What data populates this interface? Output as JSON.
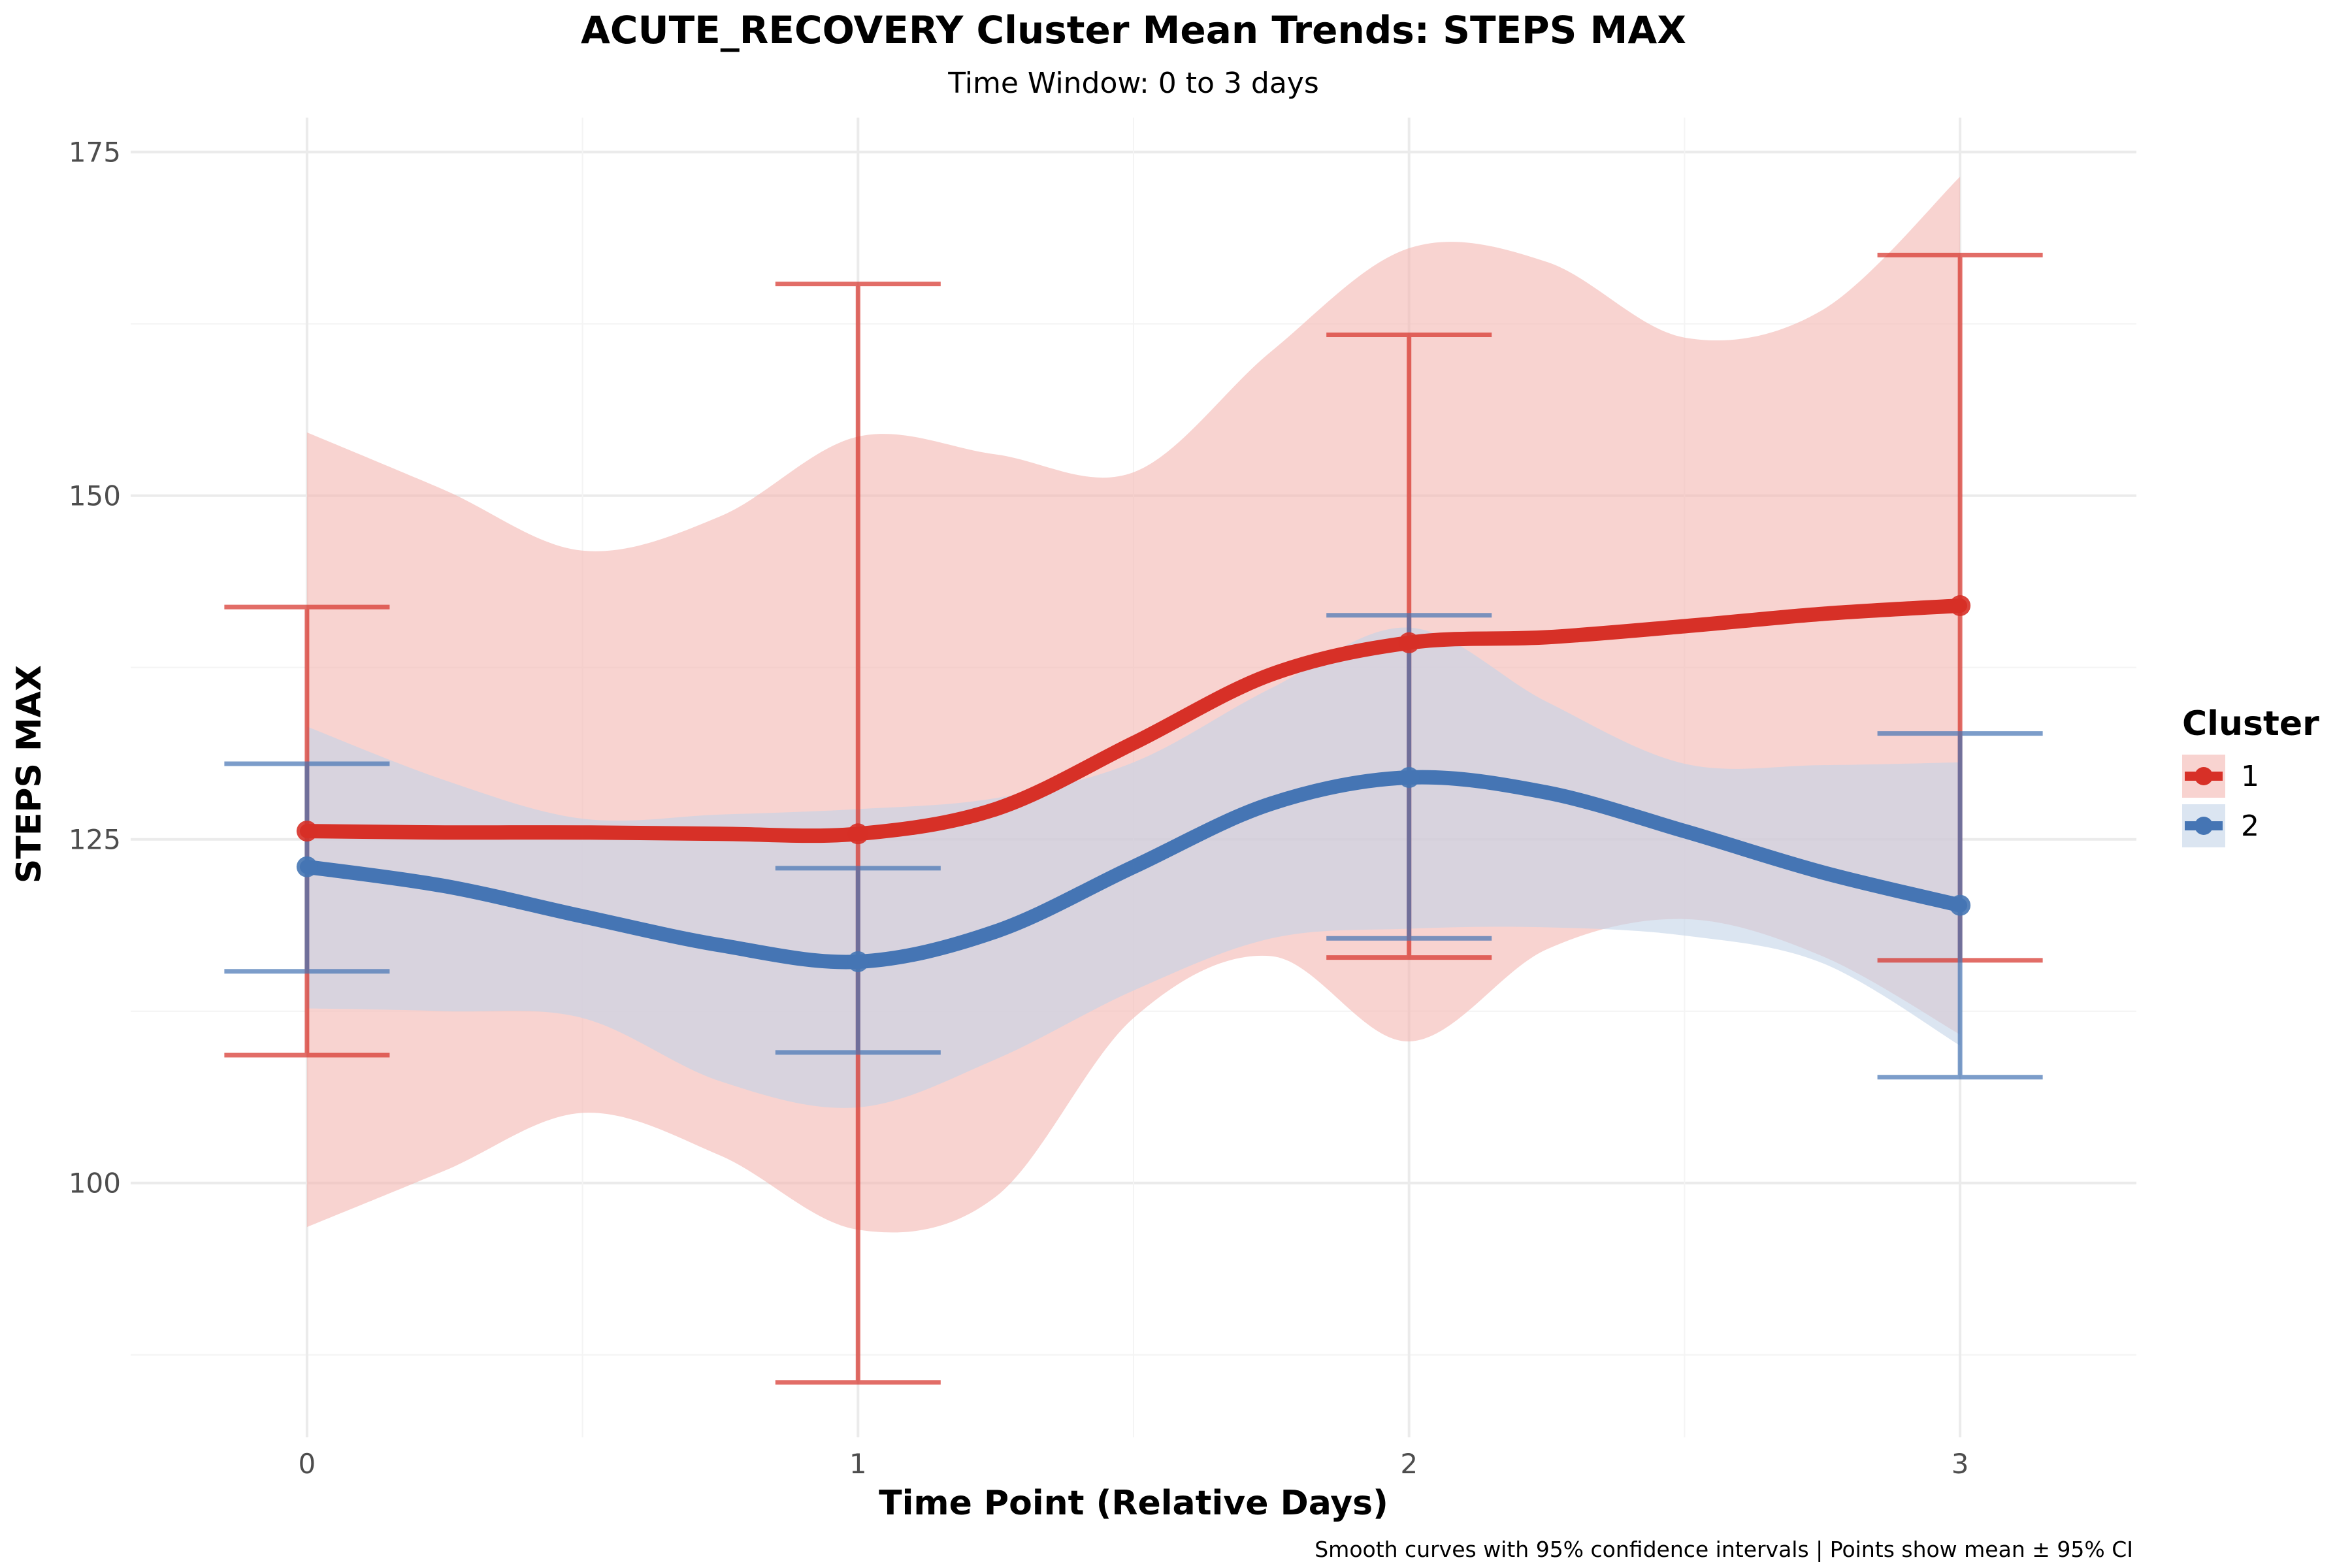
{
  "chart_data": {
    "type": "line",
    "title": "ACUTE_RECOVERY Cluster Mean Trends: STEPS MAX",
    "subtitle": "Time Window: 0 to 3 days",
    "xlabel": "Time Point (Relative Days)",
    "ylabel": "STEPS MAX",
    "caption": "Smooth curves with 95% confidence intervals | Points show mean ± 95% CI",
    "legend_title": "Cluster",
    "legend_position": "right",
    "x": [
      0,
      1,
      2,
      3
    ],
    "x_ticks": [
      0,
      1,
      2,
      3
    ],
    "x_tick_labels": [
      "0",
      "1",
      "2",
      "3"
    ],
    "xlim": [
      -0.32,
      3.32
    ],
    "y_ticks": [
      100,
      125,
      150,
      175
    ],
    "y_tick_labels": [
      "100",
      "125",
      "150",
      "175"
    ],
    "ylim": [
      81.5,
      177.5
    ],
    "grid": true,
    "series": [
      {
        "name": "1",
        "color": "#d73027",
        "band_color": "#f4b5b0",
        "means": [
          125.6,
          125.4,
          139.3,
          142.0
        ],
        "ci_upper": [
          141.9,
          165.4,
          161.7,
          167.5
        ],
        "ci_lower": [
          109.3,
          85.5,
          116.4,
          116.2
        ],
        "smooth_x": [
          0,
          0.25,
          0.5,
          0.75,
          1.0,
          1.25,
          1.5,
          1.75,
          2.0,
          2.25,
          2.5,
          2.75,
          3.0
        ],
        "smooth_y": [
          125.6,
          125.5,
          125.5,
          125.4,
          125.4,
          127.2,
          132.0,
          137.0,
          139.3,
          139.7,
          140.5,
          141.4,
          142.0
        ],
        "band_upper": [
          154.6,
          150.4,
          146.0,
          148.5,
          154.3,
          153.0,
          151.7,
          160.5,
          168.0,
          167.0,
          161.5,
          163.5,
          173.2
        ],
        "band_lower": [
          96.8,
          100.9,
          105.1,
          102.0,
          96.6,
          99.0,
          112.0,
          116.5,
          110.3,
          117.0,
          119.2,
          116.5,
          110.8
        ]
      },
      {
        "name": "2",
        "color": "#4575b4",
        "band_color": "#c3d3e8",
        "means": [
          123.0,
          116.1,
          129.5,
          120.2
        ],
        "ci_upper": [
          130.5,
          122.9,
          141.3,
          132.7
        ],
        "ci_lower": [
          115.4,
          109.5,
          117.8,
          107.7
        ],
        "smooth_x": [
          0,
          0.25,
          0.5,
          0.75,
          1.0,
          1.25,
          1.5,
          1.75,
          2.0,
          2.25,
          2.5,
          2.75,
          3.0
        ],
        "smooth_y": [
          123.0,
          121.6,
          119.4,
          117.3,
          116.1,
          118.3,
          123.0,
          127.6,
          129.5,
          128.4,
          125.6,
          122.6,
          120.2
        ],
        "band_upper": [
          133.2,
          129.3,
          126.5,
          126.8,
          127.2,
          128.0,
          130.6,
          136.0,
          140.4,
          135.0,
          130.5,
          130.4,
          130.6
        ],
        "band_lower": [
          112.7,
          112.5,
          112.0,
          107.4,
          105.5,
          109.0,
          114.0,
          117.8,
          118.5,
          118.6,
          118.0,
          116.0,
          110.0
        ]
      }
    ]
  }
}
